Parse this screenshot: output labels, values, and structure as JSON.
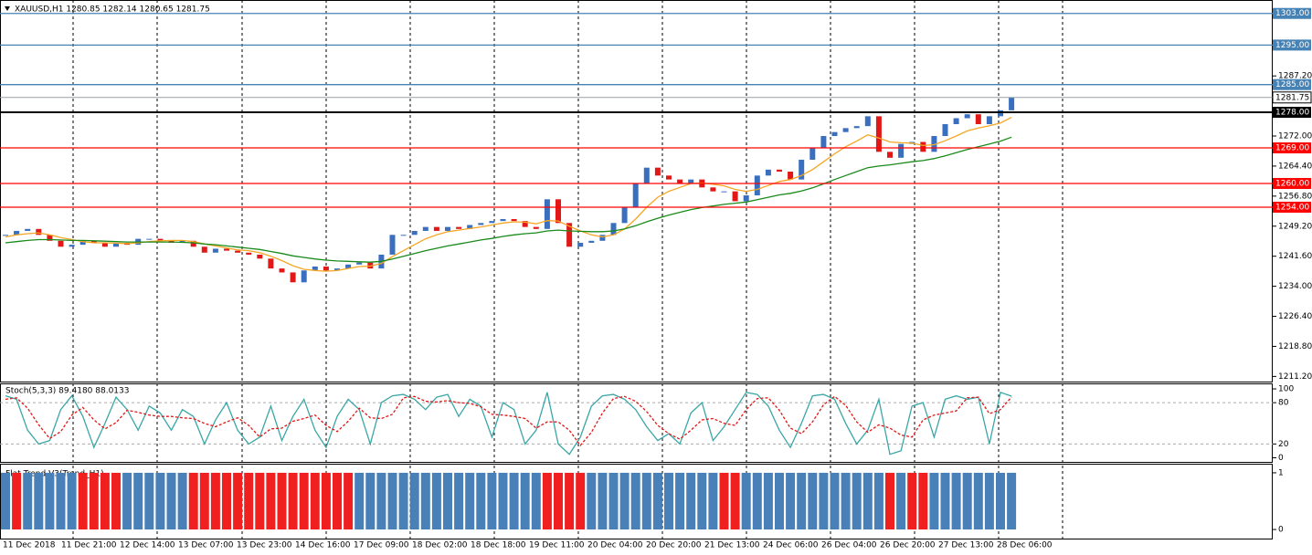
{
  "chart_data": [
    {
      "type": "candlestick",
      "title": "XAUUSD,H1  1280.85 1282.14 1280.65 1281.75",
      "values": [
        1247,
        1248,
        1248.5,
        1247,
        1245.5,
        1244,
        1244.5,
        1245.5,
        1245,
        1244,
        1245,
        1244.5,
        1246,
        1246,
        1245.5,
        1245,
        1245.5,
        1244,
        1242.5,
        1243.5,
        1243,
        1242.5,
        1242,
        1241,
        1238.5,
        1237.5,
        1235,
        1238,
        1239,
        1238,
        1238.5,
        1239.5,
        1240,
        1238.5,
        1242,
        1247,
        1247,
        1248,
        1249,
        1248,
        1249,
        1248.5,
        1249.5,
        1250,
        1250.5,
        1251,
        1250.5,
        1249,
        1248.5,
        1256,
        1250,
        1244,
        1245,
        1245.5,
        1247,
        1250,
        1254,
        1260,
        1264,
        1262,
        1261,
        1260,
        1261,
        1259,
        1258,
        1258,
        1255.5,
        1257,
        1262,
        1263.5,
        1263,
        1261,
        1266,
        1269,
        1272,
        1273,
        1274,
        1274.5,
        1277,
        1268,
        1266.5,
        1270,
        1270.5,
        1268,
        1272,
        1275,
        1276.5,
        1277.5,
        1275,
        1277,
        1278.5,
        1281.75
      ],
      "up_color": "#3a6fc0",
      "down_color": "#e01818",
      "series": [
        {
          "color": "#f5a623",
          "values": [
            1246.5,
            1247,
            1247.3,
            1247.5,
            1247,
            1246.3,
            1245.8,
            1245.3,
            1245,
            1245,
            1244.9,
            1244.8,
            1245,
            1245.3,
            1245.5,
            1245.6,
            1245.6,
            1245.3,
            1244.7,
            1244.2,
            1243.7,
            1243.2,
            1243,
            1242.5,
            1241.6,
            1240.5,
            1239.2,
            1238.3,
            1238,
            1237.8,
            1238,
            1238.5,
            1239,
            1239.1,
            1239.8,
            1241.5,
            1243,
            1244.5,
            1246,
            1247,
            1247.8,
            1248.2,
            1248.6,
            1249,
            1249.5,
            1250,
            1250.3,
            1250.2,
            1249.8,
            1250.6,
            1250.5,
            1249.2,
            1248,
            1247,
            1246.5,
            1247,
            1248.5,
            1251,
            1254,
            1256.5,
            1258,
            1259,
            1260,
            1260.1,
            1259.8,
            1259.4,
            1258.5,
            1258,
            1258.5,
            1259.5,
            1260.5,
            1261,
            1262,
            1263.5,
            1265.5,
            1267.5,
            1269.3,
            1270.7,
            1272.3,
            1271.5,
            1270.5,
            1270.3,
            1270.2,
            1269.6,
            1269.8,
            1270.8,
            1272,
            1273.3,
            1274,
            1274.6,
            1275.3,
            1276.7
          ]
        },
        {
          "color": "#1a8a1a",
          "values": [
            1245,
            1245.3,
            1245.6,
            1245.8,
            1245.8,
            1245.7,
            1245.6,
            1245.6,
            1245.5,
            1245.4,
            1245.3,
            1245.2,
            1245.2,
            1245.2,
            1245.2,
            1245.2,
            1245.1,
            1245,
            1244.7,
            1244.5,
            1244.2,
            1243.9,
            1243.6,
            1243.3,
            1242.8,
            1242.3,
            1241.7,
            1241.3,
            1240.9,
            1240.6,
            1240.4,
            1240.3,
            1240.2,
            1240.1,
            1240.3,
            1240.9,
            1241.6,
            1242.3,
            1243,
            1243.6,
            1244.2,
            1244.7,
            1245.2,
            1245.7,
            1246.1,
            1246.6,
            1247,
            1247.3,
            1247.5,
            1248,
            1248.2,
            1248,
            1247.9,
            1247.8,
            1247.8,
            1248,
            1248.5,
            1249.3,
            1250.3,
            1251.2,
            1252,
            1252.7,
            1253.4,
            1253.9,
            1254.3,
            1254.7,
            1255,
            1255.3,
            1255.9,
            1256.5,
            1257.1,
            1257.5,
            1258.1,
            1258.9,
            1259.9,
            1261,
            1262,
            1263,
            1264,
            1264.4,
            1264.7,
            1265.1,
            1265.5,
            1265.8,
            1266.3,
            1267,
            1267.8,
            1268.6,
            1269.3,
            1270,
            1270.7,
            1271.7
          ]
        }
      ],
      "ylim": [
        1209.9,
        1306.4
      ],
      "yticks": [
        {
          "value": 1211.2,
          "label": "1211.20"
        },
        {
          "value": 1218.8,
          "label": "1218.80"
        },
        {
          "value": 1226.4,
          "label": "1226.40"
        },
        {
          "value": 1234,
          "label": "1234.00"
        },
        {
          "value": 1241.6,
          "label": "1241.60"
        },
        {
          "value": 1249.2,
          "label": "1249.20"
        },
        {
          "value": 1256.8,
          "label": "1256.80"
        },
        {
          "value": 1264.4,
          "label": "1264.40"
        },
        {
          "value": 1272,
          "label": "1272.00"
        },
        {
          "value": 1287.2,
          "label": "1287.20"
        }
      ],
      "levels": [
        {
          "value": 1303,
          "label": "1303.00",
          "color": "#4682b4"
        },
        {
          "value": 1295,
          "label": "1295.00",
          "color": "#4682b4"
        },
        {
          "value": 1285,
          "label": "1285.00",
          "color": "#4682b4"
        },
        {
          "value": 1278,
          "label": "1278.00",
          "color": "#000000"
        },
        {
          "value": 1269,
          "label": "1269.00",
          "color": "#ff0000"
        },
        {
          "value": 1260,
          "label": "1260.00",
          "color": "#ff0000"
        },
        {
          "value": 1254,
          "label": "1254.00",
          "color": "#ff0000"
        }
      ],
      "last": {
        "value": 1281.75,
        "label": "1281.75"
      }
    },
    {
      "type": "line",
      "title": "Stoch(5,3,3) 89.4180 88.0133",
      "series": [
        {
          "color": "#3aa6a6",
          "values": [
            90,
            85,
            40,
            20,
            25,
            70,
            90,
            60,
            15,
            50,
            88,
            70,
            40,
            75,
            65,
            40,
            70,
            60,
            20,
            55,
            80,
            40,
            20,
            30,
            75,
            25,
            60,
            85,
            40,
            15,
            60,
            85,
            70,
            20,
            80,
            90,
            92,
            85,
            70,
            88,
            92,
            60,
            85,
            75,
            30,
            80,
            70,
            20,
            40,
            95,
            20,
            5,
            30,
            75,
            90,
            92,
            85,
            70,
            45,
            25,
            35,
            20,
            65,
            80,
            25,
            45,
            70,
            95,
            92,
            75,
            40,
            15,
            50,
            90,
            92,
            85,
            50,
            20,
            40,
            85,
            5,
            10,
            75,
            80,
            30,
            85,
            90,
            85,
            88,
            20,
            95,
            89.418
          ]
        },
        {
          "color": "#e01818",
          "dashed": true,
          "values": [
            85,
            87,
            72,
            48,
            28,
            38,
            62,
            73,
            55,
            42,
            51,
            69,
            66,
            62,
            60,
            60,
            58,
            57,
            50,
            45,
            52,
            58,
            47,
            30,
            42,
            43,
            53,
            57,
            62,
            47,
            38,
            53,
            72,
            58,
            57,
            63,
            87,
            89,
            82,
            81,
            83,
            80,
            79,
            74,
            63,
            62,
            60,
            57,
            43,
            52,
            52,
            40,
            18,
            37,
            65,
            86,
            89,
            82,
            67,
            47,
            35,
            27,
            40,
            55,
            57,
            50,
            47,
            70,
            86,
            87,
            69,
            43,
            35,
            52,
            77,
            89,
            76,
            52,
            37,
            48,
            43,
            33,
            30,
            55,
            62,
            65,
            68,
            87,
            88,
            64,
            70,
            88.0133
          ]
        }
      ],
      "ylim": [
        -6,
        108
      ],
      "yticks": [
        100,
        80,
        20,
        0
      ],
      "levels": [
        80,
        20
      ]
    },
    {
      "type": "bar",
      "title": "Flat Trend V3(Trend_H1)",
      "series": [
        {
          "color": "#4a80b8",
          "values": [
            1,
            null,
            1,
            1,
            1,
            1,
            1,
            null,
            null,
            null,
            null,
            1,
            1,
            1,
            1,
            1,
            1,
            null,
            null,
            null,
            null,
            null,
            null,
            null,
            null,
            null,
            null,
            null,
            null,
            null,
            null,
            null,
            1,
            1,
            1,
            1,
            1,
            1,
            1,
            1,
            1,
            1,
            1,
            1,
            1,
            1,
            1,
            1,
            1,
            null,
            null,
            null,
            null,
            1,
            1,
            1,
            1,
            1,
            1,
            1,
            1,
            1,
            1,
            1,
            1,
            null,
            null,
            1,
            1,
            1,
            1,
            1,
            1,
            1,
            1,
            1,
            1,
            1,
            1,
            1,
            null,
            1,
            null,
            null,
            1,
            1,
            1,
            1,
            1,
            1,
            1,
            1
          ]
        },
        {
          "color": "#f02020",
          "values": [
            null,
            1,
            null,
            null,
            null,
            null,
            null,
            1,
            1,
            1,
            1,
            null,
            null,
            null,
            null,
            null,
            null,
            1,
            1,
            1,
            1,
            1,
            1,
            1,
            1,
            1,
            1,
            1,
            1,
            1,
            1,
            1,
            null,
            null,
            null,
            null,
            null,
            null,
            null,
            null,
            null,
            null,
            null,
            null,
            null,
            null,
            null,
            null,
            null,
            1,
            1,
            1,
            1,
            null,
            null,
            null,
            null,
            null,
            null,
            null,
            null,
            null,
            null,
            null,
            null,
            1,
            1,
            null,
            null,
            null,
            null,
            null,
            null,
            null,
            null,
            null,
            null,
            null,
            null,
            null,
            1,
            null,
            1,
            1,
            null,
            null,
            null,
            null,
            null,
            null,
            null,
            null
          ]
        }
      ],
      "ylim": [
        -0.16,
        1.16
      ],
      "yticks": [
        1,
        0
      ],
      "x_labels": [
        "11 Dec 2018",
        "11 Dec 21:00",
        "12 Dec 14:00",
        "13 Dec 07:00",
        "13 Dec 23:00",
        "14 Dec 16:00",
        "17 Dec 09:00",
        "18 Dec 02:00",
        "18 Dec 18:00",
        "19 Dec 11:00",
        "20 Dec 04:00",
        "20 Dec 20:00",
        "21 Dec 13:00",
        "24 Dec 06:00",
        "26 Dec 04:00",
        "26 Dec 20:00",
        "27 Dec 13:00",
        "28 Dec 06:00"
      ]
    }
  ]
}
